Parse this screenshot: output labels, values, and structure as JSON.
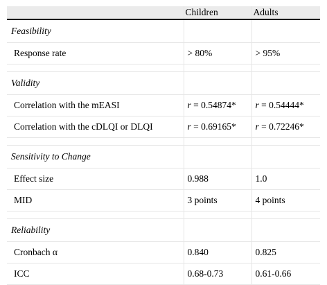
{
  "header": {
    "col_label": "",
    "col_children": "Children",
    "col_adults": "Adults"
  },
  "sections": [
    {
      "title": "Feasibility",
      "rows": [
        {
          "label": "Response rate",
          "children": "> 80%",
          "adults": "> 95%"
        }
      ]
    },
    {
      "title": "Validity",
      "rows": [
        {
          "label": "Correlation with the mEASI",
          "children_prefix": "r",
          "children": " = 0.54874*",
          "adults_prefix": "r",
          "adults": " = 0.54444*"
        },
        {
          "label": "Correlation with the cDLQI or DLQI",
          "children_prefix": "r",
          "children": " = 0.69165*",
          "adults_prefix": "r",
          "adults": " = 0.72246*"
        }
      ]
    },
    {
      "title": "Sensitivity to Change",
      "rows": [
        {
          "label": "Effect size",
          "children": "0.988",
          "adults": "1.0"
        },
        {
          "label": "MID",
          "children": "3 points",
          "adults": "4 points"
        }
      ]
    },
    {
      "title": "Reliability",
      "rows": [
        {
          "label": "Cronbach α",
          "children": "0.840",
          "adults": "0.825"
        },
        {
          "label": "ICC",
          "children": "0.68-0.73",
          "adults": "0.61-0.66"
        }
      ]
    }
  ]
}
